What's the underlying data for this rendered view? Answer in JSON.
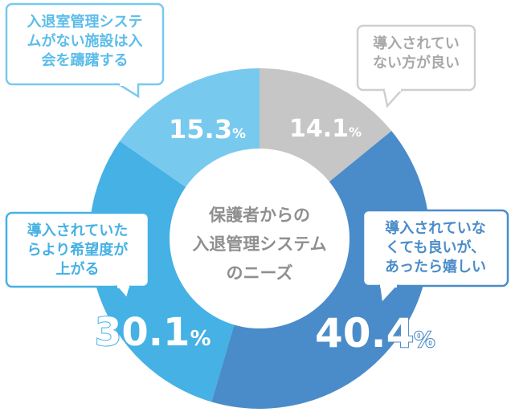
{
  "chart_data": {
    "type": "pie",
    "donut": true,
    "title": "保護者からの入退管理システムのニーズ",
    "title_lines": [
      "保護者からの",
      "入退管理システム",
      "のニーズ"
    ],
    "unit": "%",
    "slices": [
      {
        "label": "導入されていない方が良い",
        "label_lines": [
          "導入されてい",
          "ない方が良い"
        ],
        "value": 14.1,
        "value_label": "14.1",
        "color": "#c6c6c6",
        "text_color": "#a8a8a8"
      },
      {
        "label": "導入されていなくても良いが、あったら嬉しい",
        "label_lines": [
          "導入されていな",
          "くても良いが、",
          "あったら嬉しい"
        ],
        "value": 40.4,
        "value_label": "40.4",
        "color": "#4a8cc9",
        "text_color": "#4a8cc9"
      },
      {
        "label": "導入されていたらより希望度が上がる",
        "label_lines": [
          "導入されていた",
          "らより希望度が",
          "上がる"
        ],
        "value": 30.1,
        "value_label": "30.1",
        "color": "#45b1e4",
        "text_color": "#45b1e4"
      },
      {
        "label": "入退室管理システムがない施設は入会を躊躇する",
        "label_lines": [
          "入退室管理システ",
          "ムがない施設は入",
          "会を躊躇する"
        ],
        "value": 15.3,
        "value_label": "15.3",
        "color": "#78c9ee",
        "text_color": "#5dbde9"
      }
    ],
    "start": "top",
    "direction": "clockwise"
  }
}
